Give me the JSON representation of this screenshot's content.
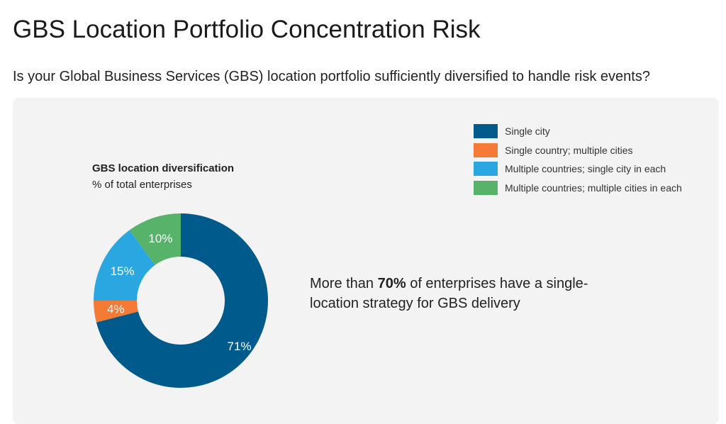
{
  "title": "GBS Location Portfolio Concentration Risk",
  "subtitle": "Is your Global Business Services (GBS) location portfolio sufficiently diversified to handle risk events?",
  "callout": {
    "pre": "More than ",
    "bold": "70%",
    "post": " of enterprises have a single-location strategy for GBS delivery"
  },
  "chart_data": {
    "type": "pie",
    "title": "GBS location diversification",
    "subtitle": "% of total enterprises",
    "legend_position": "top-right",
    "categories": [
      "Single city",
      "Single country; multiple cities",
      "Multiple countries; single city in each",
      "Multiple countries; multiple cities in each"
    ],
    "values": [
      71,
      4,
      15,
      10
    ],
    "labels": [
      "71%",
      "4%",
      "15%",
      "10%"
    ],
    "colors": [
      "#005a8c",
      "#f47a36",
      "#2aa7e0",
      "#58b36a"
    ]
  }
}
